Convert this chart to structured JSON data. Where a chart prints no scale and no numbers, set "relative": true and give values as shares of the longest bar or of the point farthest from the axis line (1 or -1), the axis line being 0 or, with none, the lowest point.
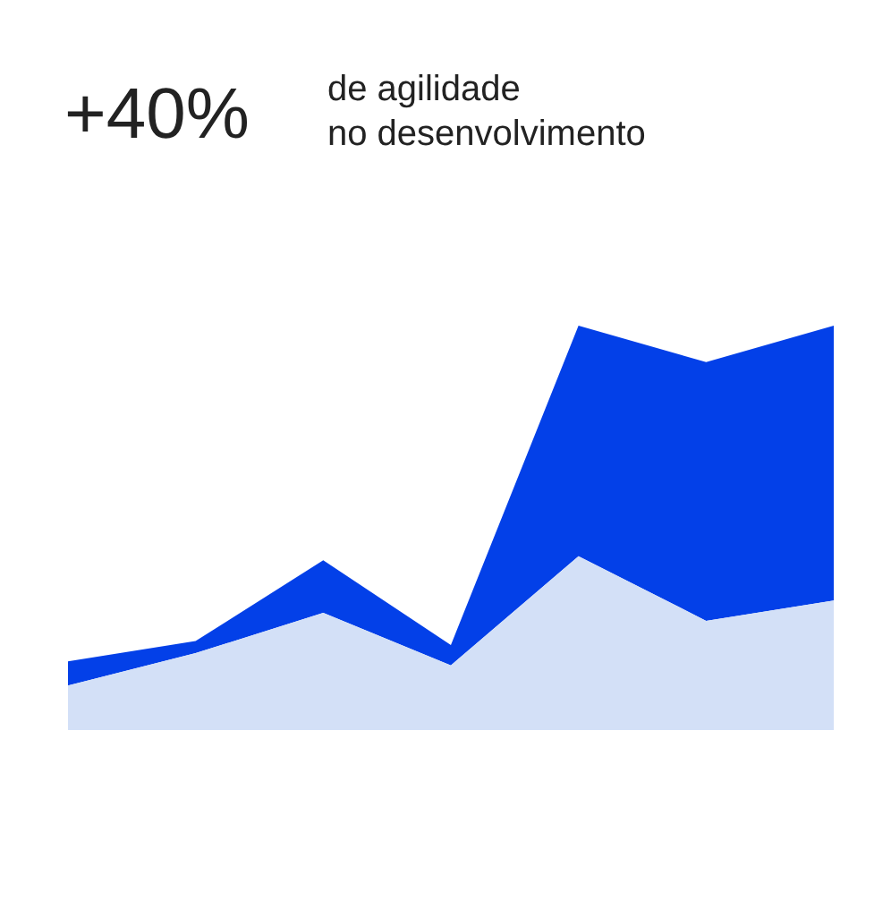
{
  "chart_data": {
    "type": "area",
    "title": "+40%",
    "subtitle": "de agilidade\nno desenvolvimento",
    "relative": true,
    "stacked": true,
    "categories": [
      null,
      null,
      null,
      null,
      null,
      null,
      null
    ],
    "series": [
      {
        "color": "#d3e0f7",
        "values": [
          0.11,
          0.19,
          0.29,
          0.16,
          0.43,
          0.27,
          0.32
        ]
      },
      {
        "color": "#0340e8",
        "values": [
          0.06,
          0.03,
          0.13,
          0.05,
          0.57,
          0.64,
          0.68
        ]
      }
    ]
  }
}
